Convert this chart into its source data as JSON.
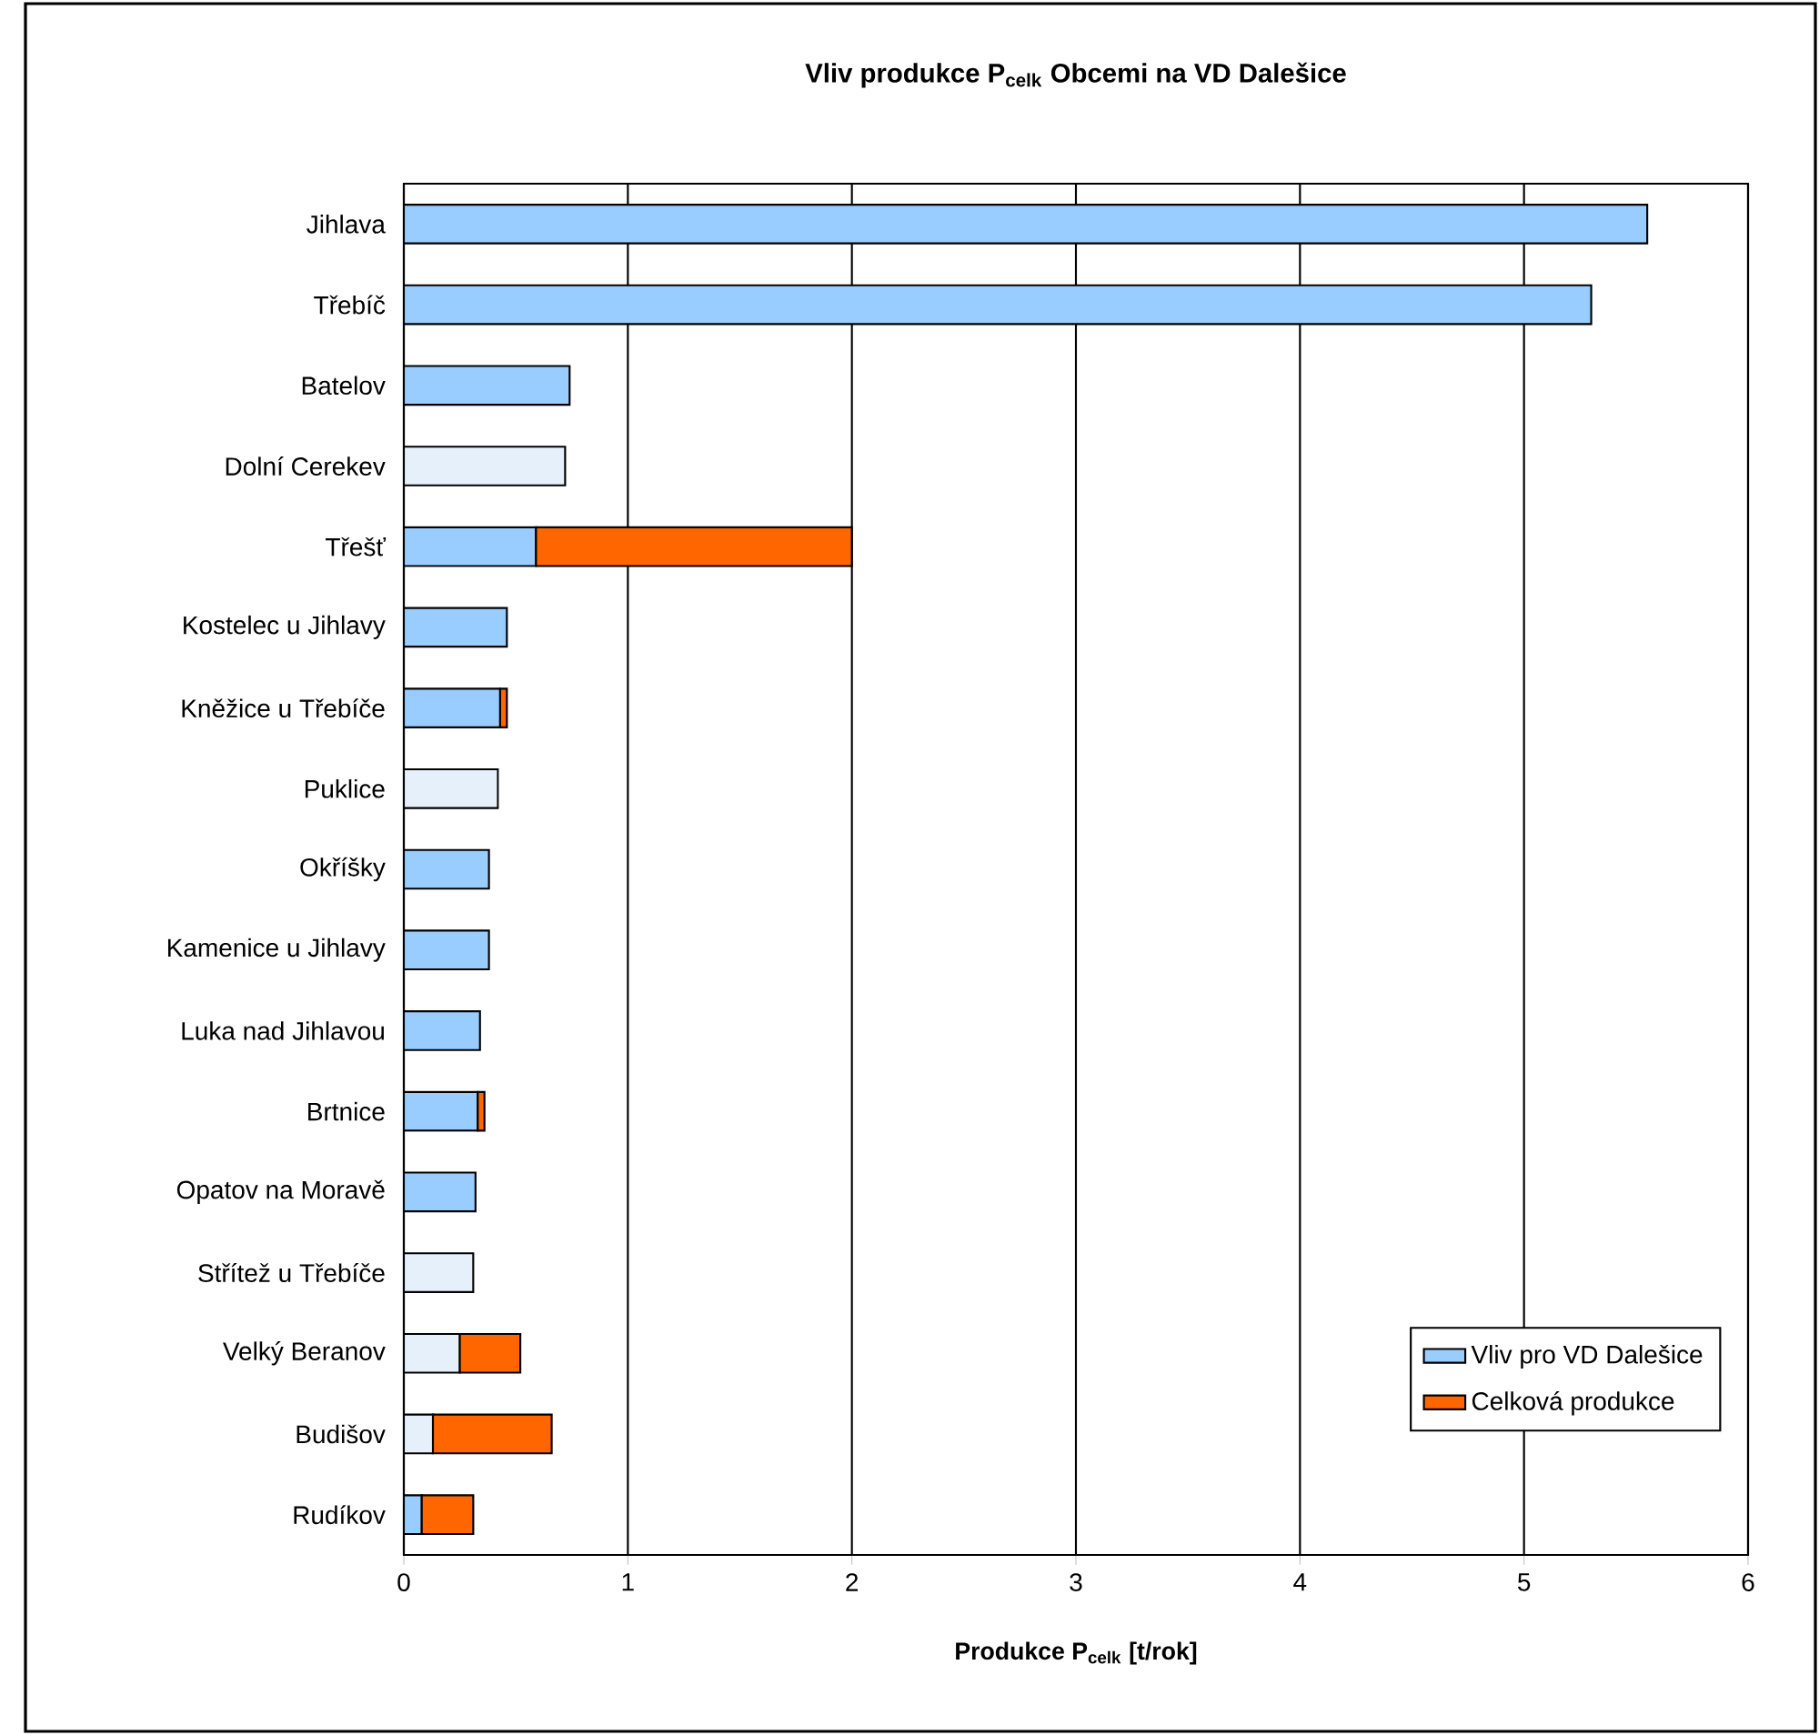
{
  "chart_data": {
    "type": "bar",
    "orientation": "horizontal",
    "stacked": true,
    "title": "Vliv produkce P$_{celk}$ Obcemi na VD Dalešice",
    "xlabel": "Produkce P$_{celk}$ [t/rok]",
    "categories": [
      "Jihlava",
      "Třebíč",
      "Batelov",
      "Dolní Cerekev",
      "Třešť",
      "Kostelec u Jihlavy",
      "Kněžice u Třebíče",
      "Puklice",
      "Okříšky",
      "Kamenice u Jihlavy",
      "Luka nad Jihlavou",
      "Brtnice",
      "Opatov na Moravě",
      "Střítež u Třebíče",
      "Velký Beranov",
      "Budišov",
      "Rudíkov"
    ],
    "series": [
      {
        "name": "Vliv pro VD Dalešice",
        "color": "#99ccff",
        "colors": [
          "#99ccff",
          "#99ccff",
          "#99ccff",
          "#e6f0fb",
          "#99ccff",
          "#99ccff",
          "#99ccff",
          "#e6f0fb",
          "#99ccff",
          "#99ccff",
          "#99ccff",
          "#99ccff",
          "#99ccff",
          "#e6f0fb",
          "#e6f0fb",
          "#e6f0fb",
          "#99ccff"
        ],
        "values": [
          5.55,
          5.3,
          0.74,
          0.72,
          0.59,
          0.46,
          0.43,
          0.42,
          0.38,
          0.38,
          0.34,
          0.33,
          0.32,
          0.31,
          0.25,
          0.13,
          0.08
        ]
      },
      {
        "name": "Celková produkce",
        "color": "#ff6600",
        "values": [
          null,
          null,
          null,
          null,
          1.41,
          null,
          0.03,
          null,
          null,
          null,
          null,
          0.03,
          null,
          null,
          0.27,
          0.53,
          0.23
        ]
      }
    ],
    "xlim": [
      0,
      6
    ],
    "xticks": [
      0,
      1,
      2,
      3,
      4,
      5,
      6
    ],
    "grid": "x",
    "legend": "bottom right"
  }
}
